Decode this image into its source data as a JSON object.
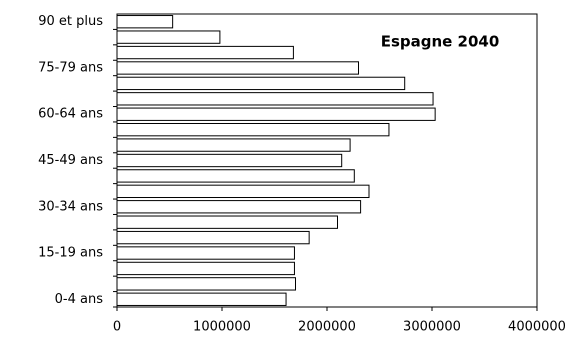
{
  "chart_data": {
    "type": "bar",
    "orientation": "horizontal",
    "title": "Espagne 2040",
    "categories": [
      "0-4 ans",
      null,
      null,
      "15-19 ans",
      null,
      null,
      "30-34 ans",
      null,
      null,
      "45-49 ans",
      null,
      null,
      "60-64 ans",
      null,
      null,
      "75-79 ans",
      null,
      null,
      "90 et plus"
    ],
    "values": [
      1610000,
      1700000,
      1690000,
      1690000,
      1830000,
      2100000,
      2320000,
      2400000,
      2260000,
      2140000,
      2220000,
      2590000,
      3030000,
      3010000,
      2740000,
      2300000,
      1680000,
      980000,
      530000
    ],
    "color": "#ffffff",
    "xlim": [
      0,
      4000000
    ],
    "xticks": [
      0,
      1000000,
      2000000,
      3000000,
      4000000
    ]
  }
}
